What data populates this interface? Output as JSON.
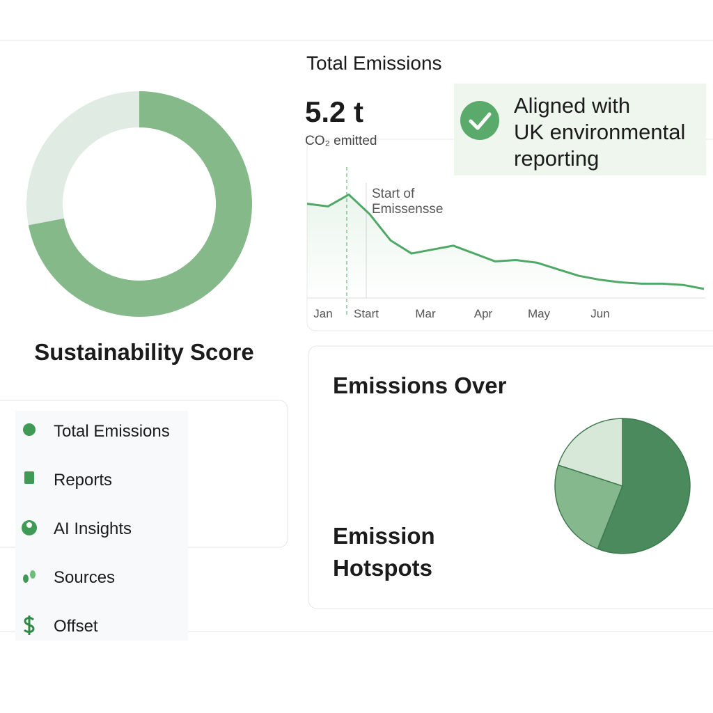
{
  "total_emissions": {
    "title": "Total Emissions",
    "value": "5.2 t",
    "caption": "CO₂ emitted"
  },
  "badge": {
    "lines": [
      "Aligned with",
      "UK environmental",
      "reporting"
    ]
  },
  "chart_data": [
    {
      "type": "line",
      "annotation": [
        "Start of",
        "Emissensse"
      ],
      "x_labels": [
        "Jan",
        "Start",
        "Mar",
        "Apr",
        "May",
        "Jun"
      ],
      "series": [
        {
          "color": "#4fa866",
          "values": [
            72,
            70,
            79,
            64,
            44,
            34,
            37,
            40,
            34,
            28,
            29,
            27,
            22,
            17,
            14,
            12,
            11,
            11,
            10,
            7
          ]
        }
      ]
    },
    {
      "type": "donut",
      "title": "Sustainability Score",
      "values": [
        72,
        28
      ],
      "colors": [
        "#86b98a",
        "#e0ebe3"
      ]
    },
    {
      "type": "pie",
      "values": [
        56,
        24,
        20
      ],
      "colors": [
        "#4a8a5c",
        "#85b88c",
        "#d8e8d8"
      ]
    }
  ],
  "nav": [
    "Total Emissions",
    "Reports",
    "AI Insights",
    "Sources",
    "Offset"
  ],
  "emissions_card": {
    "title": "Emissions Over",
    "subtitle": [
      "Emission",
      "Hotspots"
    ]
  }
}
